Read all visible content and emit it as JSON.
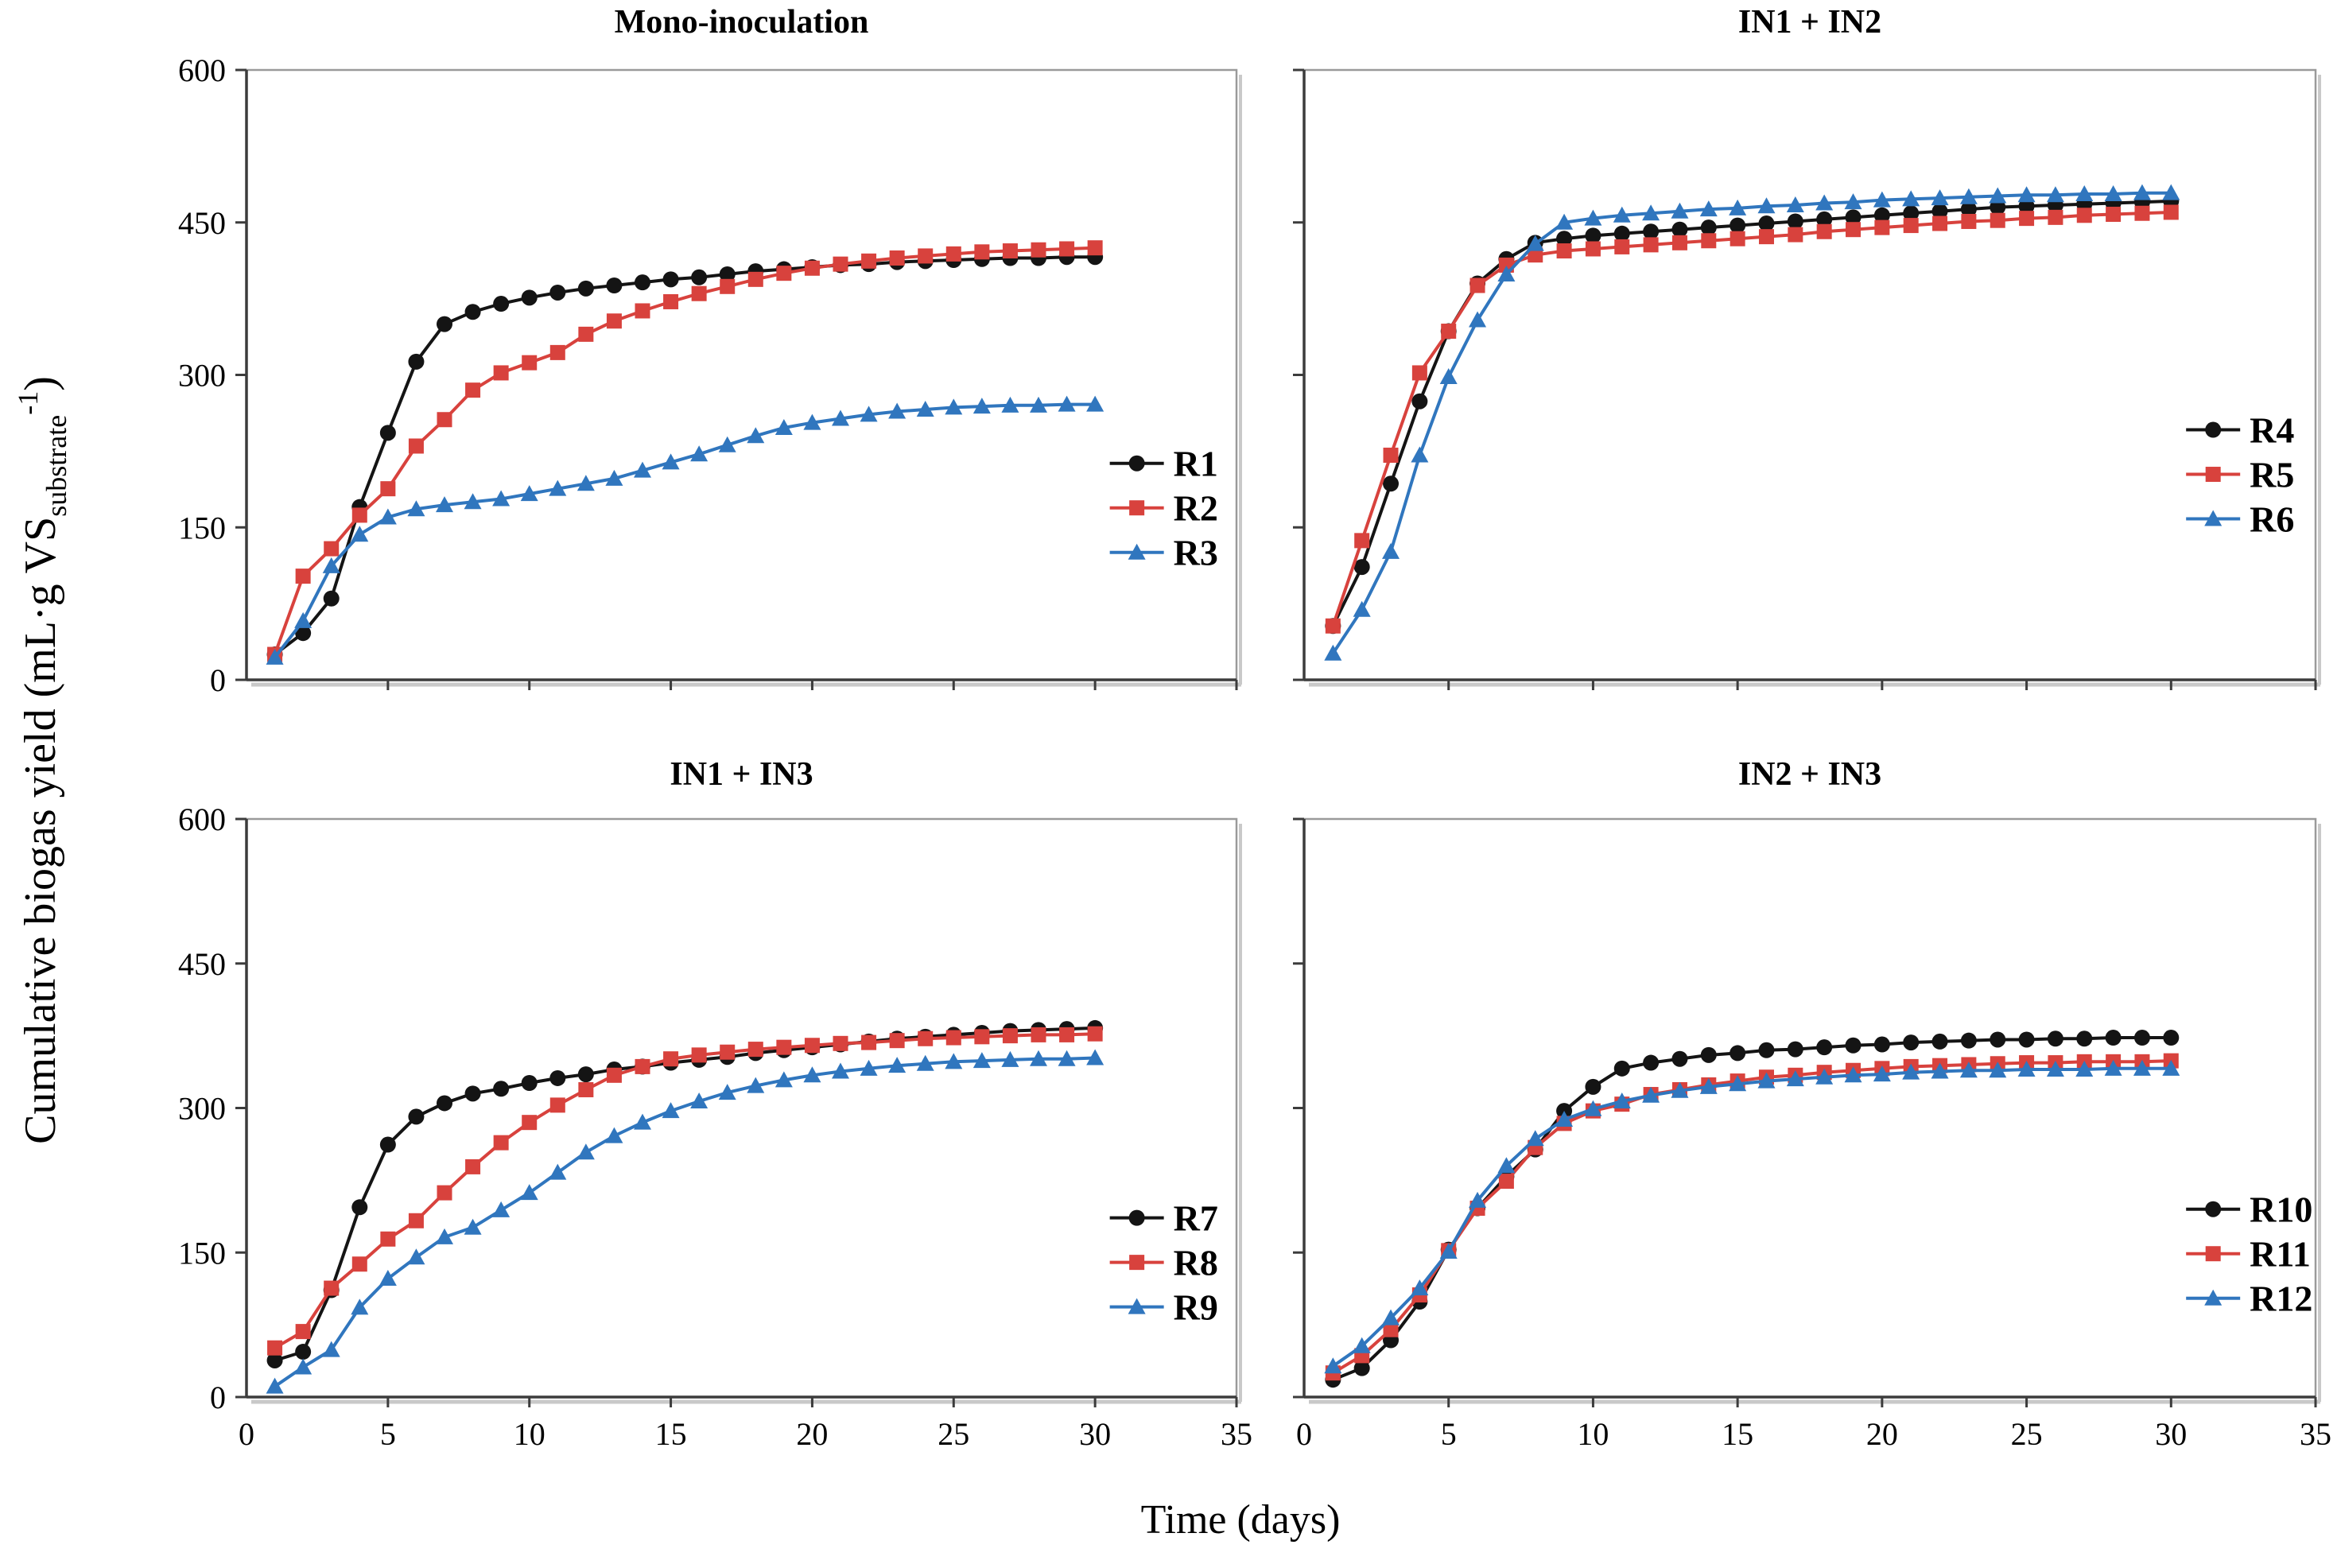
{
  "figure": {
    "y_axis_label": {
      "prefix": "Cumulative biogas yield (mL·g VS",
      "sub": "substrate",
      "sup": "-1",
      "suffix": ")"
    },
    "x_axis_label": "Time (days)"
  },
  "colors": {
    "black": "#141414",
    "red": "#d8423d",
    "blue": "#3076be",
    "axis_dark": "#3c3c3c",
    "axis_light": "#9a9a9a",
    "axis_shadow": "#c9c9c9"
  },
  "chart_data": [
    {
      "type": "line",
      "title": "Mono-inoculation",
      "position": "top-left",
      "xlabel": "",
      "ylabel": "",
      "xlim": [
        0,
        35
      ],
      "ylim": [
        0,
        600
      ],
      "x_ticks": [
        0,
        5,
        10,
        15,
        20,
        25,
        30,
        35
      ],
      "y_ticks": [
        0,
        150,
        300,
        450,
        600
      ],
      "show_x_tick_labels": false,
      "show_y_tick_labels": true,
      "grid": false,
      "legend_position": "inside-right",
      "legend_fy": 0.645,
      "x": [
        1,
        2,
        3,
        4,
        5,
        6,
        7,
        8,
        9,
        10,
        11,
        12,
        13,
        14,
        15,
        16,
        17,
        18,
        19,
        20,
        21,
        22,
        23,
        24,
        25,
        26,
        27,
        28,
        29,
        30
      ],
      "series": [
        {
          "name": "R1",
          "color_key": "black",
          "marker": "circle",
          "values": [
            25,
            46,
            80,
            170,
            243,
            313,
            350,
            362,
            370,
            376,
            381,
            385,
            388,
            391,
            394,
            396,
            399,
            402,
            404,
            406,
            408,
            409,
            411,
            412,
            413,
            414,
            415,
            415,
            416,
            416
          ]
        },
        {
          "name": "R2",
          "color_key": "red",
          "marker": "square",
          "values": [
            25,
            102,
            129,
            162,
            188,
            230,
            256,
            285,
            302,
            312,
            322,
            340,
            353,
            363,
            372,
            380,
            387,
            394,
            400,
            405,
            409,
            412,
            415,
            417,
            419,
            421,
            422,
            423,
            424,
            425
          ]
        },
        {
          "name": "R3",
          "color_key": "blue",
          "marker": "triangle",
          "values": [
            22,
            58,
            112,
            143,
            160,
            168,
            172,
            175,
            178,
            183,
            188,
            193,
            198,
            206,
            214,
            222,
            231,
            240,
            248,
            253,
            257,
            261,
            264,
            266,
            268,
            269,
            270,
            270,
            271,
            271
          ]
        }
      ]
    },
    {
      "type": "line",
      "title": "IN1 + IN2",
      "position": "top-right",
      "xlabel": "",
      "ylabel": "",
      "xlim": [
        0,
        35
      ],
      "ylim": [
        0,
        600
      ],
      "x_ticks": [
        0,
        5,
        10,
        15,
        20,
        25,
        30,
        35
      ],
      "y_ticks": [
        0,
        150,
        300,
        450,
        600
      ],
      "show_x_tick_labels": false,
      "show_y_tick_labels": false,
      "grid": false,
      "legend_position": "inside-right",
      "legend_fy": 0.59,
      "x": [
        1,
        2,
        3,
        4,
        5,
        6,
        7,
        8,
        9,
        10,
        11,
        12,
        13,
        14,
        15,
        16,
        17,
        18,
        19,
        20,
        21,
        22,
        23,
        24,
        25,
        26,
        27,
        28,
        29,
        30
      ],
      "series": [
        {
          "name": "R4",
          "color_key": "black",
          "marker": "circle",
          "values": [
            53,
            111,
            193,
            274,
            343,
            390,
            414,
            430,
            434,
            437,
            439,
            441,
            443,
            445,
            447,
            449,
            451,
            453,
            455,
            457,
            459,
            461,
            463,
            465,
            466,
            467,
            468,
            469,
            470,
            471
          ]
        },
        {
          "name": "R5",
          "color_key": "red",
          "marker": "square",
          "values": [
            53,
            137,
            221,
            302,
            343,
            388,
            408,
            418,
            422,
            424,
            426,
            428,
            430,
            432,
            434,
            436,
            438,
            441,
            443,
            445,
            447,
            449,
            451,
            452,
            454,
            455,
            457,
            458,
            459,
            460
          ]
        },
        {
          "name": "R6",
          "color_key": "blue",
          "marker": "triangle",
          "values": [
            26,
            69,
            126,
            221,
            298,
            354,
            399,
            429,
            450,
            454,
            457,
            459,
            461,
            463,
            464,
            466,
            467,
            469,
            470,
            472,
            473,
            474,
            475,
            476,
            477,
            477,
            478,
            478,
            479,
            479
          ]
        }
      ]
    },
    {
      "type": "line",
      "title": "IN1 + IN3",
      "position": "bottom-left",
      "xlabel": "",
      "ylabel": "",
      "xlim": [
        0,
        35
      ],
      "ylim": [
        0,
        600
      ],
      "x_ticks": [
        0,
        5,
        10,
        15,
        20,
        25,
        30,
        35
      ],
      "y_ticks": [
        0,
        150,
        300,
        450,
        600
      ],
      "show_x_tick_labels": true,
      "show_y_tick_labels": true,
      "grid": false,
      "legend_position": "inside-right",
      "legend_fy": 0.69,
      "x": [
        1,
        2,
        3,
        4,
        5,
        6,
        7,
        8,
        9,
        10,
        11,
        12,
        13,
        14,
        15,
        16,
        17,
        18,
        19,
        20,
        21,
        22,
        23,
        24,
        25,
        26,
        27,
        28,
        29,
        30
      ],
      "series": [
        {
          "name": "R7",
          "color_key": "black",
          "marker": "circle",
          "values": [
            38,
            47,
            111,
            197,
            262,
            291,
            305,
            315,
            320,
            326,
            331,
            335,
            340,
            343,
            347,
            350,
            353,
            357,
            360,
            363,
            366,
            369,
            372,
            374,
            376,
            378,
            380,
            381,
            382,
            383
          ]
        },
        {
          "name": "R8",
          "color_key": "red",
          "marker": "square",
          "values": [
            51,
            68,
            113,
            138,
            164,
            183,
            212,
            239,
            264,
            285,
            303,
            319,
            334,
            343,
            351,
            355,
            358,
            361,
            363,
            365,
            367,
            368,
            370,
            372,
            373,
            374,
            375,
            376,
            376,
            377
          ]
        },
        {
          "name": "R9",
          "color_key": "blue",
          "marker": "triangle",
          "values": [
            11,
            31,
            49,
            93,
            123,
            145,
            166,
            176,
            194,
            212,
            233,
            254,
            271,
            285,
            297,
            307,
            316,
            323,
            329,
            334,
            338,
            341,
            344,
            346,
            348,
            349,
            350,
            351,
            351,
            352
          ]
        }
      ]
    },
    {
      "type": "line",
      "title": "IN2 + IN3",
      "position": "bottom-right",
      "xlabel": "",
      "ylabel": "",
      "xlim": [
        0,
        35
      ],
      "ylim": [
        0,
        600
      ],
      "x_ticks": [
        0,
        5,
        10,
        15,
        20,
        25,
        30,
        35
      ],
      "y_ticks": [
        0,
        150,
        300,
        450,
        600
      ],
      "show_x_tick_labels": true,
      "show_y_tick_labels": false,
      "grid": false,
      "legend_position": "inside-right",
      "legend_fy": 0.675,
      "x": [
        1,
        2,
        3,
        4,
        5,
        6,
        7,
        8,
        9,
        10,
        11,
        12,
        13,
        14,
        15,
        16,
        17,
        18,
        19,
        20,
        21,
        22,
        23,
        24,
        25,
        26,
        27,
        28,
        29,
        30
      ],
      "series": [
        {
          "name": "R10",
          "color_key": "black",
          "marker": "circle",
          "values": [
            18,
            30,
            59,
            99,
            153,
            196,
            229,
            257,
            297,
            322,
            341,
            347,
            351,
            355,
            357,
            360,
            361,
            363,
            365,
            366,
            368,
            369,
            370,
            371,
            371,
            372,
            372,
            373,
            373,
            373
          ]
        },
        {
          "name": "R11",
          "color_key": "red",
          "marker": "square",
          "values": [
            25,
            43,
            70,
            106,
            152,
            196,
            224,
            259,
            284,
            297,
            304,
            314,
            319,
            324,
            328,
            332,
            334,
            337,
            339,
            341,
            343,
            344,
            345,
            346,
            347,
            347,
            348,
            348,
            348,
            349
          ]
        },
        {
          "name": "R12",
          "color_key": "blue",
          "marker": "triangle",
          "values": [
            32,
            53,
            82,
            113,
            151,
            204,
            240,
            268,
            288,
            299,
            307,
            313,
            318,
            322,
            325,
            328,
            330,
            332,
            334,
            335,
            337,
            338,
            339,
            339,
            340,
            340,
            340,
            341,
            341,
            341
          ]
        }
      ]
    }
  ]
}
